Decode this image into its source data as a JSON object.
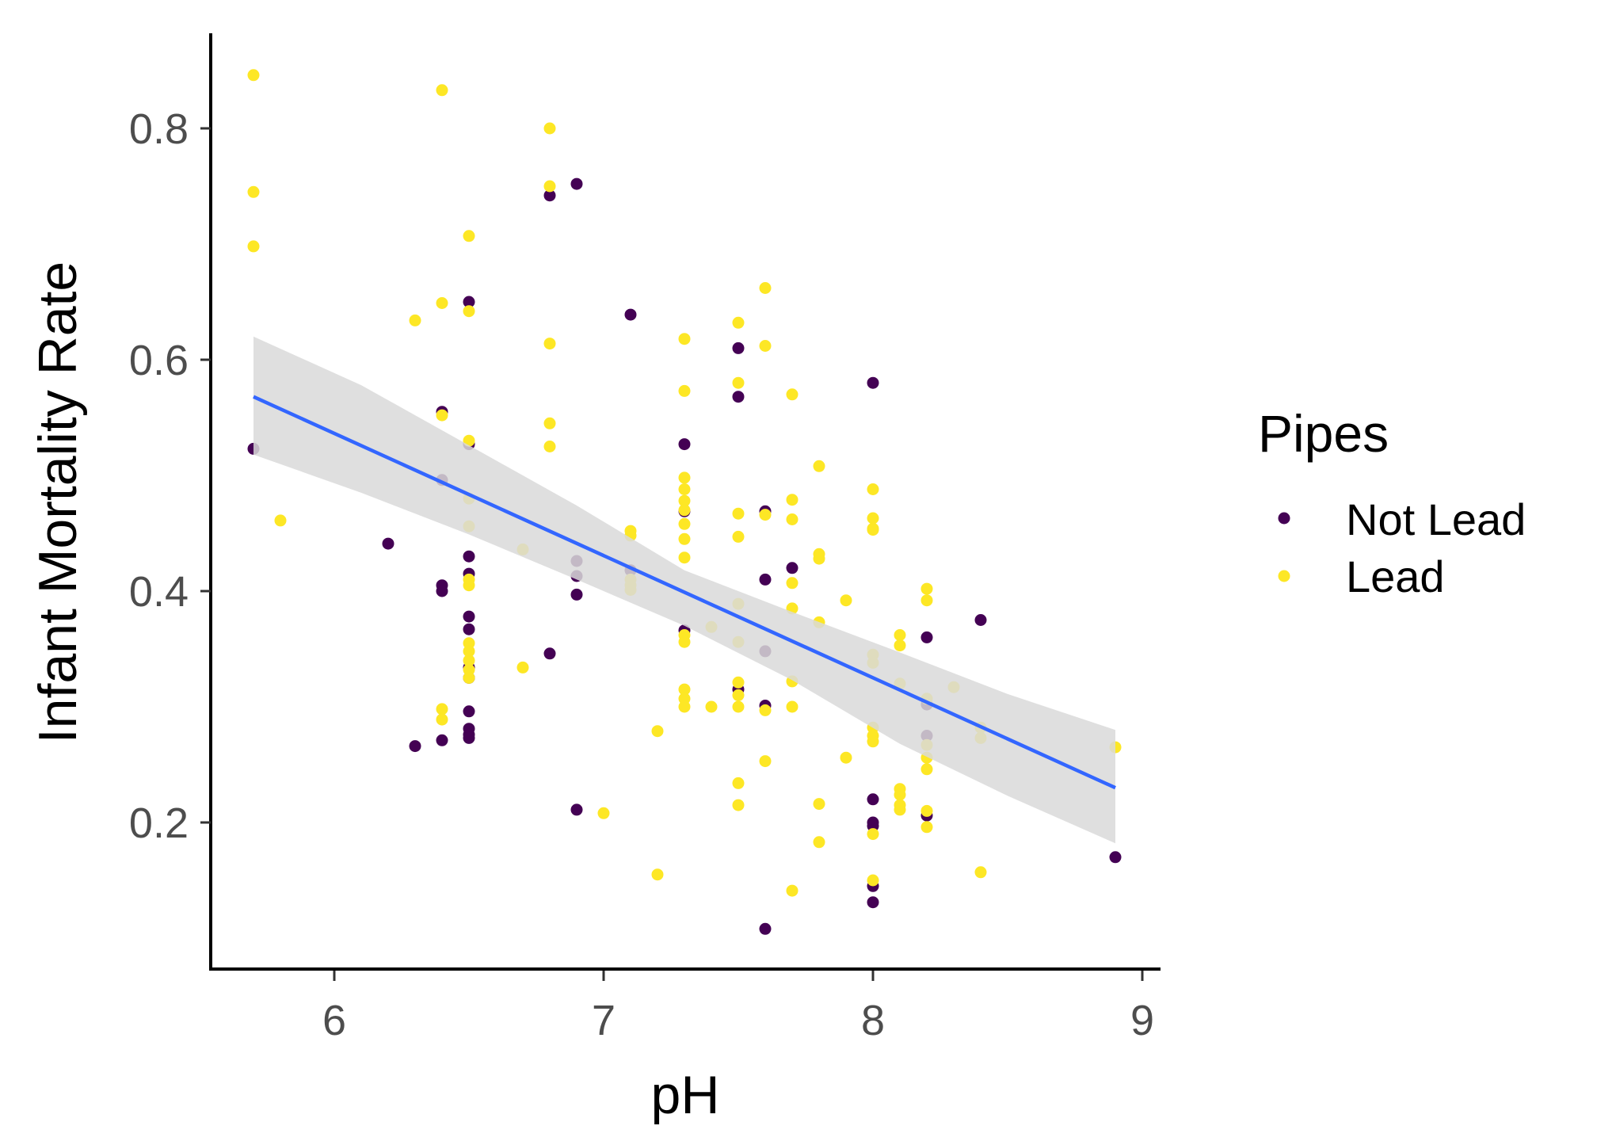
{
  "chart_data": {
    "type": "scatter",
    "xlabel": "pH",
    "ylabel": "Infant Mortality Rate",
    "xlim": [
      5.55,
      9.05
    ],
    "ylim": [
      0.07,
      0.88
    ],
    "x_ticks": [
      6,
      7,
      8,
      9
    ],
    "y_ticks": [
      0.2,
      0.4,
      0.6,
      0.8
    ],
    "x_tick_labels": [
      "6",
      "7",
      "8",
      "9"
    ],
    "y_tick_labels": [
      "0.2",
      "0.4",
      "0.6",
      "0.8"
    ],
    "grid": false,
    "legend": {
      "title": "Pipes",
      "position": "right",
      "entries": [
        {
          "label": "Not Lead",
          "color": "#440154"
        },
        {
          "label": "Lead",
          "color": "#fde725"
        }
      ]
    },
    "series": [
      {
        "name": "Not Lead",
        "color": "#440154",
        "points": [
          [
            5.7,
            0.523
          ],
          [
            6.2,
            0.441
          ],
          [
            6.3,
            0.266
          ],
          [
            6.4,
            0.555
          ],
          [
            6.4,
            0.496
          ],
          [
            6.4,
            0.405
          ],
          [
            6.4,
            0.4
          ],
          [
            6.4,
            0.271
          ],
          [
            6.5,
            0.65
          ],
          [
            6.5,
            0.527
          ],
          [
            6.5,
            0.43
          ],
          [
            6.5,
            0.415
          ],
          [
            6.5,
            0.378
          ],
          [
            6.5,
            0.367
          ],
          [
            6.5,
            0.334
          ],
          [
            6.5,
            0.325
          ],
          [
            6.5,
            0.296
          ],
          [
            6.5,
            0.281
          ],
          [
            6.5,
            0.276
          ],
          [
            6.5,
            0.273
          ],
          [
            6.8,
            0.742
          ],
          [
            6.8,
            0.346
          ],
          [
            6.9,
            0.752
          ],
          [
            6.9,
            0.426
          ],
          [
            6.9,
            0.413
          ],
          [
            6.9,
            0.397
          ],
          [
            6.9,
            0.211
          ],
          [
            7.1,
            0.639
          ],
          [
            7.1,
            0.418
          ],
          [
            7.3,
            0.527
          ],
          [
            7.3,
            0.469
          ],
          [
            7.3,
            0.366
          ],
          [
            7.5,
            0.61
          ],
          [
            7.5,
            0.568
          ],
          [
            7.5,
            0.315
          ],
          [
            7.6,
            0.469
          ],
          [
            7.6,
            0.41
          ],
          [
            7.6,
            0.348
          ],
          [
            7.6,
            0.301
          ],
          [
            7.6,
            0.108
          ],
          [
            7.7,
            0.42
          ],
          [
            8.0,
            0.58
          ],
          [
            8.0,
            0.22
          ],
          [
            8.0,
            0.2
          ],
          [
            8.0,
            0.197
          ],
          [
            8.0,
            0.145
          ],
          [
            8.0,
            0.131
          ],
          [
            8.2,
            0.36
          ],
          [
            8.2,
            0.302
          ],
          [
            8.2,
            0.275
          ],
          [
            8.2,
            0.206
          ],
          [
            8.4,
            0.375
          ],
          [
            8.9,
            0.17
          ]
        ]
      },
      {
        "name": "Lead",
        "color": "#fde725",
        "points": [
          [
            5.7,
            0.846
          ],
          [
            5.7,
            0.745
          ],
          [
            5.7,
            0.698
          ],
          [
            5.8,
            0.461
          ],
          [
            6.3,
            0.634
          ],
          [
            6.4,
            0.833
          ],
          [
            6.4,
            0.649
          ],
          [
            6.4,
            0.552
          ],
          [
            6.4,
            0.298
          ],
          [
            6.4,
            0.289
          ],
          [
            6.5,
            0.707
          ],
          [
            6.5,
            0.642
          ],
          [
            6.5,
            0.53
          ],
          [
            6.5,
            0.48
          ],
          [
            6.5,
            0.456
          ],
          [
            6.5,
            0.41
          ],
          [
            6.5,
            0.405
          ],
          [
            6.5,
            0.355
          ],
          [
            6.5,
            0.348
          ],
          [
            6.5,
            0.34
          ],
          [
            6.5,
            0.332
          ],
          [
            6.5,
            0.325
          ],
          [
            6.7,
            0.334
          ],
          [
            6.7,
            0.436
          ],
          [
            6.8,
            0.8
          ],
          [
            6.8,
            0.75
          ],
          [
            6.8,
            0.614
          ],
          [
            6.8,
            0.545
          ],
          [
            6.8,
            0.525
          ],
          [
            7.0,
            0.208
          ],
          [
            7.1,
            0.452
          ],
          [
            7.1,
            0.448
          ],
          [
            7.1,
            0.41
          ],
          [
            7.1,
            0.405
          ],
          [
            7.1,
            0.401
          ],
          [
            7.2,
            0.279
          ],
          [
            7.2,
            0.155
          ],
          [
            7.3,
            0.618
          ],
          [
            7.3,
            0.573
          ],
          [
            7.3,
            0.498
          ],
          [
            7.3,
            0.488
          ],
          [
            7.3,
            0.478
          ],
          [
            7.3,
            0.47
          ],
          [
            7.3,
            0.458
          ],
          [
            7.3,
            0.445
          ],
          [
            7.3,
            0.429
          ],
          [
            7.3,
            0.362
          ],
          [
            7.3,
            0.356
          ],
          [
            7.3,
            0.315
          ],
          [
            7.3,
            0.307
          ],
          [
            7.3,
            0.3
          ],
          [
            7.4,
            0.369
          ],
          [
            7.4,
            0.3
          ],
          [
            7.5,
            0.632
          ],
          [
            7.5,
            0.58
          ],
          [
            7.5,
            0.467
          ],
          [
            7.5,
            0.447
          ],
          [
            7.5,
            0.389
          ],
          [
            7.5,
            0.356
          ],
          [
            7.5,
            0.321
          ],
          [
            7.5,
            0.31
          ],
          [
            7.5,
            0.3
          ],
          [
            7.5,
            0.234
          ],
          [
            7.5,
            0.215
          ],
          [
            7.6,
            0.662
          ],
          [
            7.6,
            0.612
          ],
          [
            7.6,
            0.466
          ],
          [
            7.6,
            0.297
          ],
          [
            7.6,
            0.253
          ],
          [
            7.7,
            0.57
          ],
          [
            7.7,
            0.479
          ],
          [
            7.7,
            0.462
          ],
          [
            7.7,
            0.407
          ],
          [
            7.7,
            0.385
          ],
          [
            7.7,
            0.322
          ],
          [
            7.7,
            0.3
          ],
          [
            7.7,
            0.141
          ],
          [
            7.8,
            0.508
          ],
          [
            7.8,
            0.432
          ],
          [
            7.8,
            0.428
          ],
          [
            7.8,
            0.373
          ],
          [
            7.8,
            0.216
          ],
          [
            7.8,
            0.183
          ],
          [
            7.9,
            0.392
          ],
          [
            7.9,
            0.256
          ],
          [
            8.0,
            0.488
          ],
          [
            8.0,
            0.463
          ],
          [
            8.0,
            0.454
          ],
          [
            8.0,
            0.453
          ],
          [
            8.0,
            0.345
          ],
          [
            8.0,
            0.338
          ],
          [
            8.0,
            0.282
          ],
          [
            8.0,
            0.275
          ],
          [
            8.0,
            0.27
          ],
          [
            8.0,
            0.19
          ],
          [
            8.0,
            0.15
          ],
          [
            8.1,
            0.362
          ],
          [
            8.1,
            0.353
          ],
          [
            8.1,
            0.32
          ],
          [
            8.1,
            0.229
          ],
          [
            8.1,
            0.224
          ],
          [
            8.1,
            0.215
          ],
          [
            8.1,
            0.211
          ],
          [
            8.2,
            0.402
          ],
          [
            8.2,
            0.392
          ],
          [
            8.2,
            0.307
          ],
          [
            8.2,
            0.267
          ],
          [
            8.2,
            0.256
          ],
          [
            8.2,
            0.246
          ],
          [
            8.2,
            0.21
          ],
          [
            8.2,
            0.196
          ],
          [
            8.3,
            0.317
          ],
          [
            8.4,
            0.282
          ],
          [
            8.4,
            0.273
          ],
          [
            8.4,
            0.157
          ],
          [
            8.9,
            0.265
          ]
        ]
      }
    ],
    "trend_line": {
      "method": "linear",
      "color": "#3366ff",
      "start": [
        5.7,
        0.568
      ],
      "end": [
        8.9,
        0.23
      ],
      "confidence_band": {
        "color": "#d9d9d9",
        "x": [
          5.7,
          6.1,
          6.5,
          6.9,
          7.3,
          7.7,
          8.1,
          8.5,
          8.9
        ],
        "lower": [
          0.518,
          0.485,
          0.449,
          0.41,
          0.37,
          0.323,
          0.268,
          0.223,
          0.182
        ],
        "upper": [
          0.62,
          0.578,
          0.526,
          0.474,
          0.418,
          0.382,
          0.347,
          0.311,
          0.28
        ]
      }
    }
  }
}
